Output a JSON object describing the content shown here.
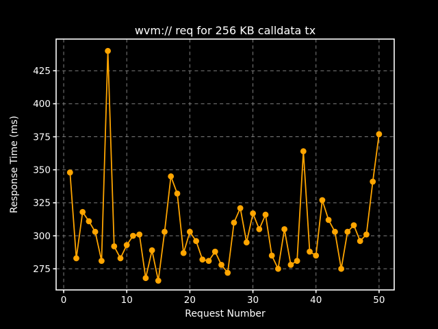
{
  "figure": {
    "background_color": "#000000",
    "text_color": "#ffffff"
  },
  "chart_data": {
    "type": "line",
    "title": "wvm:// req for 256 KB calldata tx",
    "xlabel": "Request Number",
    "ylabel": "Response Time (ms)",
    "legend": false,
    "grid": true,
    "grid_style": "dashed",
    "x": [
      1,
      2,
      3,
      4,
      5,
      6,
      7,
      8,
      9,
      10,
      11,
      12,
      13,
      14,
      15,
      16,
      17,
      18,
      19,
      20,
      21,
      22,
      23,
      24,
      25,
      26,
      27,
      28,
      29,
      30,
      31,
      32,
      33,
      34,
      35,
      36,
      37,
      38,
      39,
      40,
      41,
      42,
      43,
      44,
      45,
      46,
      47,
      48,
      49,
      50
    ],
    "values": [
      348,
      283,
      318,
      311,
      303,
      281,
      440,
      292,
      283,
      293,
      300,
      301,
      268,
      289,
      266,
      303,
      345,
      332,
      287,
      303,
      296,
      282,
      281,
      288,
      278,
      272,
      310,
      321,
      295,
      317,
      305,
      316,
      285,
      275,
      305,
      278,
      281,
      364,
      288,
      285,
      327,
      312,
      303,
      275,
      303,
      308,
      296,
      301,
      341,
      377
    ],
    "xticks": [
      0,
      10,
      20,
      30,
      40,
      50
    ],
    "yticks": [
      275,
      300,
      325,
      350,
      375,
      400,
      425
    ],
    "xlim": [
      -1.2,
      52.4
    ],
    "ylim": [
      259,
      449
    ],
    "colors": {
      "line": "#FFA500",
      "marker": "#FFA500",
      "background": "#000000",
      "text": "#ffffff",
      "grid": "#808080",
      "frame": "#ffffff"
    },
    "marker": "o"
  }
}
